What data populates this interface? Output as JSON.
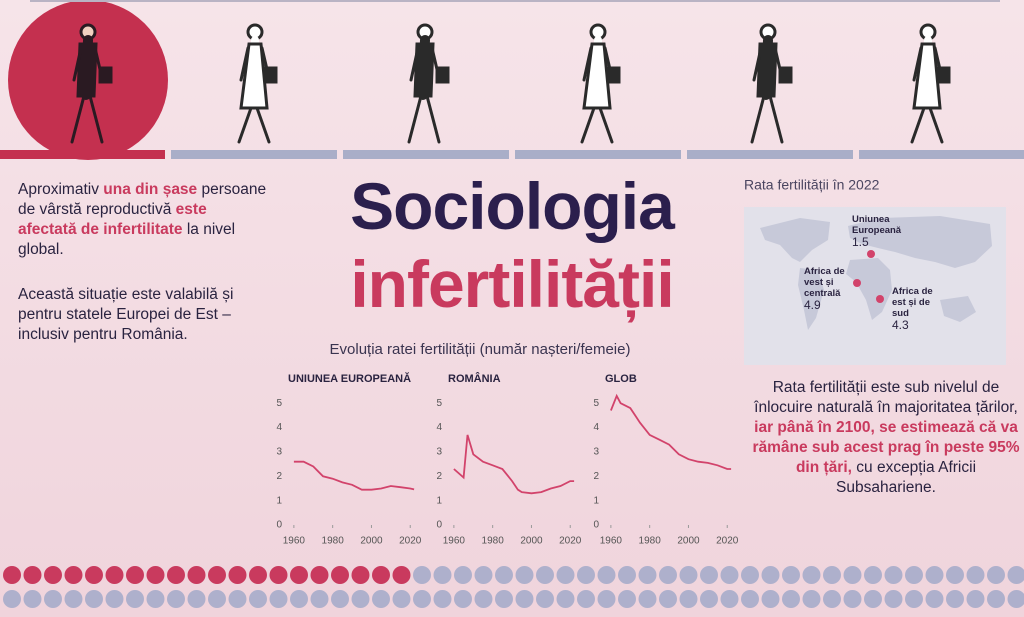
{
  "intro": {
    "paragraph_1": [
      "Aproximativ",
      "una din șase",
      "persoane de vârstă reproductivă",
      "este afectată de infertilitate",
      "la nivel global."
    ],
    "paragraph_2": "Această situație este valabilă și pentru statele Europei de Est – inclusiv pentru România."
  },
  "title": [
    "Sociologia",
    "infertilității"
  ],
  "charts_subtitle": "Evoluția ratei fertilității (număr nașteri/femeie)",
  "chart_data": [
    {
      "type": "line",
      "title": "UNIUNEA EUROPEANĂ",
      "color": "#d2436b",
      "x": [
        1960,
        1965,
        1970,
        1975,
        1980,
        1985,
        1990,
        1995,
        2000,
        2005,
        2010,
        2015,
        2020,
        2022
      ],
      "values": [
        2.6,
        2.6,
        2.4,
        2.0,
        1.9,
        1.75,
        1.65,
        1.45,
        1.45,
        1.5,
        1.6,
        1.55,
        1.5,
        1.46
      ],
      "xlim": [
        1958,
        2024
      ],
      "ylim": [
        0,
        5.5
      ],
      "xticks": [
        1960,
        1980,
        2000,
        2020
      ],
      "yticks": [
        0,
        1,
        2,
        3,
        4,
        5
      ]
    },
    {
      "type": "line",
      "title": "ROMÂNIA",
      "color": "#d2436b",
      "x": [
        1960,
        1965,
        1967,
        1970,
        1975,
        1980,
        1985,
        1990,
        1993,
        1995,
        2000,
        2005,
        2010,
        2015,
        2020,
        2022
      ],
      "values": [
        2.3,
        1.95,
        3.7,
        2.9,
        2.6,
        2.45,
        2.3,
        1.8,
        1.45,
        1.35,
        1.3,
        1.35,
        1.5,
        1.6,
        1.8,
        1.8
      ],
      "xlim": [
        1958,
        2024
      ],
      "ylim": [
        0,
        5.5
      ],
      "xticks": [
        1960,
        1980,
        2000,
        2020
      ],
      "yticks": [
        0,
        1,
        2,
        3,
        4,
        5
      ]
    },
    {
      "type": "line",
      "title": "GLOB",
      "color": "#d2436b",
      "x": [
        1960,
        1963,
        1965,
        1970,
        1975,
        1980,
        1985,
        1990,
        1995,
        2000,
        2005,
        2010,
        2015,
        2020,
        2022
      ],
      "values": [
        4.7,
        5.3,
        5.0,
        4.8,
        4.2,
        3.7,
        3.5,
        3.3,
        2.9,
        2.7,
        2.6,
        2.55,
        2.45,
        2.3,
        2.3
      ],
      "xlim": [
        1958,
        2024
      ],
      "ylim": [
        0,
        5.5
      ],
      "xticks": [
        1960,
        1980,
        2000,
        2020
      ],
      "yticks": [
        0,
        1,
        2,
        3,
        4,
        5
      ]
    }
  ],
  "map": {
    "title": "Rata fertilității în 2022",
    "regions": [
      {
        "name": "Uniunea Europeană",
        "value": 1.5
      },
      {
        "name": "Africa de vest și centrală",
        "value": 4.9
      },
      {
        "name": "Africa de est și de sud",
        "value": 4.3
      }
    ]
  },
  "outlook": [
    "Rata fertilității este sub nivelul de înlocuire naturală în majoritatea țărilor,",
    "iar până în 2100, se estimează că va rămâne sub acest prag în peste 95% din țări,",
    "cu excepția Africii Subsahariene."
  ]
}
